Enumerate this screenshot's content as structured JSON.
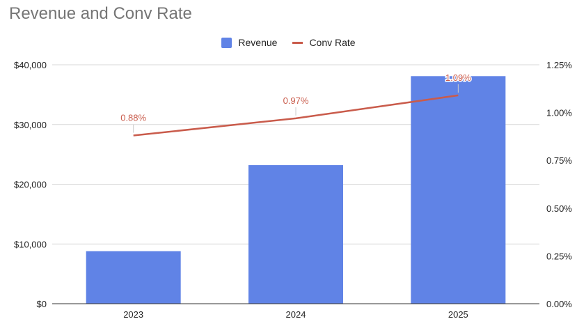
{
  "chart_data": {
    "type": "bar",
    "title": "Revenue and Conv Rate",
    "categories": [
      "2023",
      "2024",
      "2025"
    ],
    "series": [
      {
        "name": "Revenue",
        "type": "bar",
        "axis": "left",
        "color": "#6083E6",
        "values": [
          8800,
          23200,
          38100
        ]
      },
      {
        "name": "Conv Rate",
        "type": "line",
        "axis": "right",
        "color": "#C95B4B",
        "values": [
          0.0088,
          0.0097,
          0.0109
        ],
        "labels": [
          "0.88%",
          "0.97%",
          "1.09%"
        ]
      }
    ],
    "y_left": {
      "range": [
        0,
        40000
      ],
      "ticks": [
        0,
        10000,
        20000,
        30000,
        40000
      ],
      "tick_labels": [
        "$0",
        "$10,000",
        "$20,000",
        "$30,000",
        "$40,000"
      ]
    },
    "y_right": {
      "range": [
        0,
        0.0125
      ],
      "ticks": [
        0,
        0.0025,
        0.005,
        0.0075,
        0.01,
        0.0125
      ],
      "tick_labels": [
        "0.00%",
        "0.25%",
        "0.50%",
        "0.75%",
        "1.00%",
        "1.25%"
      ]
    },
    "grid": true,
    "legend_position": "top"
  }
}
